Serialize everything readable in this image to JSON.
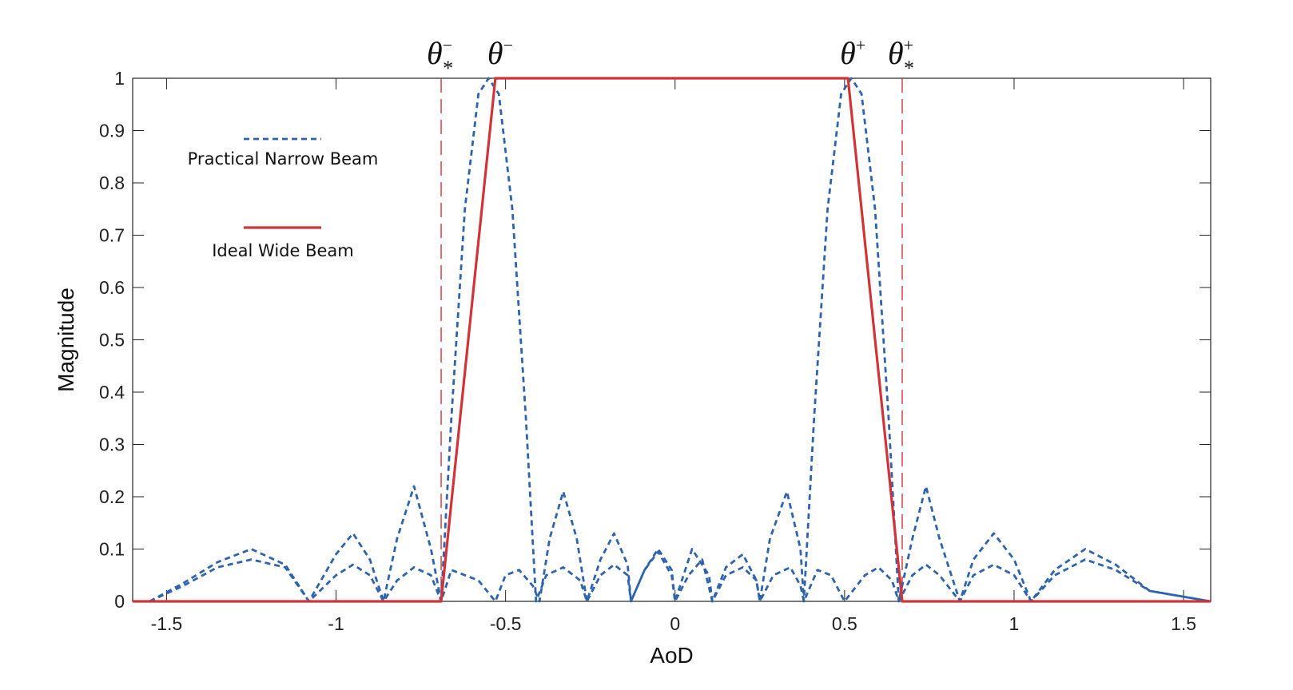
{
  "chart_data": {
    "type": "line",
    "xlabel": "AoD",
    "ylabel": "Magnitude",
    "xlim": [
      -1.6,
      1.58
    ],
    "ylim": [
      0,
      1
    ],
    "xticks": [
      -1.5,
      -1,
      -0.5,
      0,
      0.5,
      1,
      1.5
    ],
    "xtick_labels": [
      "-1.5",
      "-1",
      "-0.5",
      "0",
      "0.5",
      "1",
      "1.5"
    ],
    "yticks": [
      0,
      0.1,
      0.2,
      0.3,
      0.4,
      0.5,
      0.6,
      0.7,
      0.8,
      0.9,
      1
    ],
    "ytick_labels": [
      "0",
      "0.1",
      "0.2",
      "0.3",
      "0.4",
      "0.5",
      "0.6",
      "0.7",
      "0.8",
      "0.9",
      "1"
    ],
    "grid": false,
    "legend_position": "top-left",
    "series": [
      {
        "name": "Practical Narrow Beam",
        "style": "dashed",
        "color": "#2e64ad",
        "beam_centers": [
          -0.55,
          0.52
        ],
        "points": [
          [
            [
              -1.55,
              0.0
            ],
            [
              -1.45,
              0.03
            ],
            [
              -1.35,
              0.065
            ],
            [
              -1.25,
              0.08
            ],
            [
              -1.15,
              0.065
            ],
            [
              -1.08,
              0.0
            ],
            [
              -1.0,
              0.05
            ],
            [
              -0.95,
              0.07
            ],
            [
              -0.9,
              0.05
            ],
            [
              -0.86,
              0.0
            ],
            [
              -0.82,
              0.04
            ],
            [
              -0.77,
              0.065
            ],
            [
              -0.72,
              0.05
            ],
            [
              -0.69,
              0.0
            ],
            [
              -0.66,
              0.35
            ],
            [
              -0.62,
              0.75
            ],
            [
              -0.58,
              0.97
            ],
            [
              -0.55,
              1.0
            ],
            [
              -0.52,
              0.97
            ],
            [
              -0.48,
              0.75
            ],
            [
              -0.44,
              0.35
            ],
            [
              -0.41,
              0.0
            ],
            [
              -0.38,
              0.05
            ],
            [
              -0.33,
              0.065
            ],
            [
              -0.28,
              0.04
            ],
            [
              -0.26,
              0.0
            ],
            [
              -0.22,
              0.05
            ],
            [
              -0.18,
              0.07
            ],
            [
              -0.14,
              0.05
            ],
            [
              -0.13,
              0.0
            ],
            [
              -0.09,
              0.06
            ],
            [
              -0.05,
              0.095
            ],
            [
              -0.01,
              0.05
            ],
            [
              0.0,
              0.0
            ],
            [
              0.05,
              0.1
            ],
            [
              0.1,
              0.05
            ],
            [
              0.11,
              0.0
            ],
            [
              0.15,
              0.065
            ],
            [
              0.2,
              0.09
            ],
            [
              0.24,
              0.04
            ],
            [
              0.25,
              0.0
            ],
            [
              0.28,
              0.12
            ],
            [
              0.33,
              0.21
            ],
            [
              0.37,
              0.1
            ],
            [
              0.38,
              0.0
            ],
            [
              0.41,
              0.35
            ],
            [
              0.45,
              0.75
            ],
            [
              0.49,
              0.97
            ],
            [
              0.52,
              1.0
            ],
            [
              0.55,
              0.97
            ],
            [
              0.59,
              0.75
            ],
            [
              0.63,
              0.35
            ],
            [
              0.66,
              0.0
            ],
            [
              0.7,
              0.12
            ],
            [
              0.74,
              0.22
            ],
            [
              0.78,
              0.12
            ],
            [
              0.84,
              0.0
            ],
            [
              0.88,
              0.08
            ],
            [
              0.94,
              0.13
            ],
            [
              1.0,
              0.08
            ],
            [
              1.05,
              0.0
            ],
            [
              1.12,
              0.06
            ],
            [
              1.21,
              0.1
            ],
            [
              1.3,
              0.07
            ],
            [
              1.4,
              0.02
            ],
            [
              1.58,
              0.0
            ]
          ],
          [
            [
              -1.55,
              0.0
            ],
            [
              -1.45,
              0.035
            ],
            [
              -1.35,
              0.075
            ],
            [
              -1.25,
              0.1
            ],
            [
              -1.15,
              0.07
            ],
            [
              -1.08,
              0.0
            ],
            [
              -1.0,
              0.09
            ],
            [
              -0.95,
              0.13
            ],
            [
              -0.9,
              0.08
            ],
            [
              -0.86,
              0.0
            ],
            [
              -0.82,
              0.12
            ],
            [
              -0.77,
              0.22
            ],
            [
              -0.72,
              0.1
            ],
            [
              -0.69,
              0.0
            ],
            [
              -0.66,
              0.06
            ],
            [
              -0.58,
              0.04
            ],
            [
              -0.53,
              0.0
            ],
            [
              -0.5,
              0.05
            ],
            [
              -0.46,
              0.06
            ],
            [
              -0.42,
              0.03
            ],
            [
              -0.4,
              0.0
            ],
            [
              -0.37,
              0.12
            ],
            [
              -0.33,
              0.21
            ],
            [
              -0.29,
              0.12
            ],
            [
              -0.26,
              0.0
            ],
            [
              -0.22,
              0.08
            ],
            [
              -0.18,
              0.13
            ],
            [
              -0.14,
              0.07
            ],
            [
              -0.13,
              0.0
            ],
            [
              -0.09,
              0.06
            ],
            [
              -0.05,
              0.1
            ],
            [
              -0.01,
              0.06
            ],
            [
              0.0,
              0.0
            ],
            [
              0.04,
              0.05
            ],
            [
              0.08,
              0.08
            ],
            [
              0.11,
              0.0
            ],
            [
              0.15,
              0.05
            ],
            [
              0.2,
              0.065
            ],
            [
              0.24,
              0.04
            ],
            [
              0.25,
              0.0
            ],
            [
              0.29,
              0.05
            ],
            [
              0.34,
              0.065
            ],
            [
              0.37,
              0.03
            ],
            [
              0.38,
              0.0
            ],
            [
              0.42,
              0.06
            ],
            [
              0.46,
              0.05
            ],
            [
              0.5,
              0.0
            ],
            [
              0.56,
              0.05
            ],
            [
              0.6,
              0.065
            ],
            [
              0.64,
              0.04
            ],
            [
              0.66,
              0.0
            ],
            [
              0.7,
              0.05
            ],
            [
              0.74,
              0.07
            ],
            [
              0.78,
              0.05
            ],
            [
              0.84,
              0.0
            ],
            [
              0.88,
              0.05
            ],
            [
              0.94,
              0.07
            ],
            [
              1.0,
              0.05
            ],
            [
              1.05,
              0.0
            ],
            [
              1.12,
              0.05
            ],
            [
              1.21,
              0.08
            ],
            [
              1.3,
              0.06
            ],
            [
              1.4,
              0.02
            ],
            [
              1.58,
              0.0
            ]
          ]
        ]
      },
      {
        "name": "Ideal Wide Beam",
        "style": "solid",
        "color": "#d13438",
        "x": [
          -1.6,
          -0.69,
          -0.53,
          0.51,
          0.67,
          1.58
        ],
        "y": [
          0.0,
          0.0,
          1.0,
          1.0,
          0.0,
          0.0
        ]
      }
    ],
    "reference_lines": [
      {
        "x": -0.69,
        "style": "dashed",
        "color": "#d13438"
      },
      {
        "x": 0.67,
        "style": "dashed",
        "color": "#d13438"
      }
    ],
    "annotations": [
      {
        "x": -0.69,
        "base": "θ",
        "sup": "−",
        "sub": "*"
      },
      {
        "x": -0.53,
        "base": "θ",
        "sup": "−",
        "sub": ""
      },
      {
        "x": 0.51,
        "base": "θ",
        "sup": "+",
        "sub": ""
      },
      {
        "x": 0.67,
        "base": "θ",
        "sup": "+",
        "sub": "*"
      }
    ]
  }
}
